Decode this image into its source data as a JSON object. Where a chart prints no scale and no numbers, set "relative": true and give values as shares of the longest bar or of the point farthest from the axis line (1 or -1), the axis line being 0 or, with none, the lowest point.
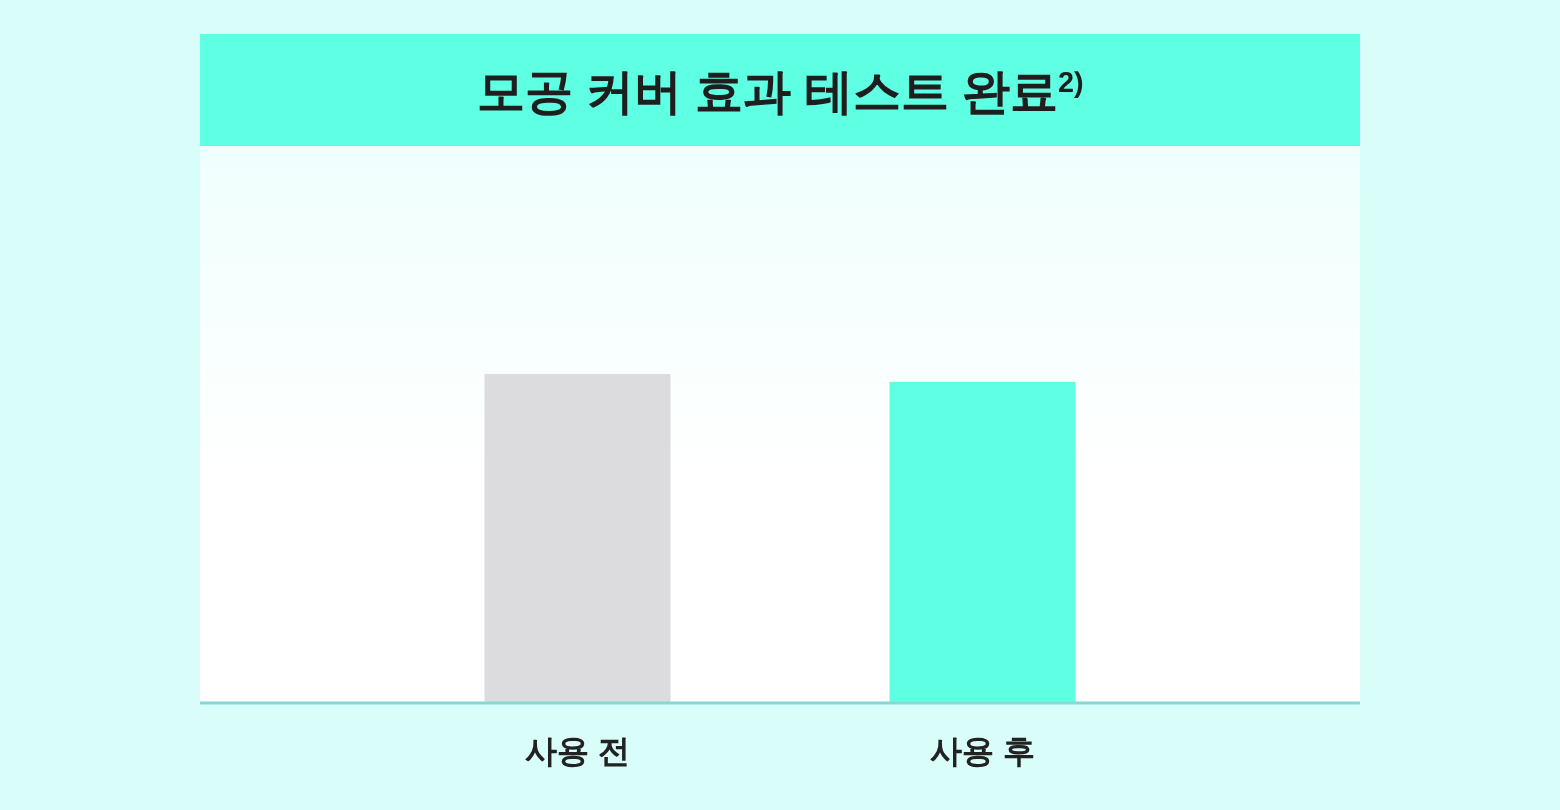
{
  "chart_data": {
    "type": "bar",
    "title": "모공 커버 효과 테스트 완료$^{2)}$",
    "categories": [
      "사용 전",
      "사용 후"
    ],
    "values": [
      1,
      0.976
    ],
    "colors": [
      "#dcdbdd",
      "#5fffe3"
    ],
    "relative": true
  }
}
